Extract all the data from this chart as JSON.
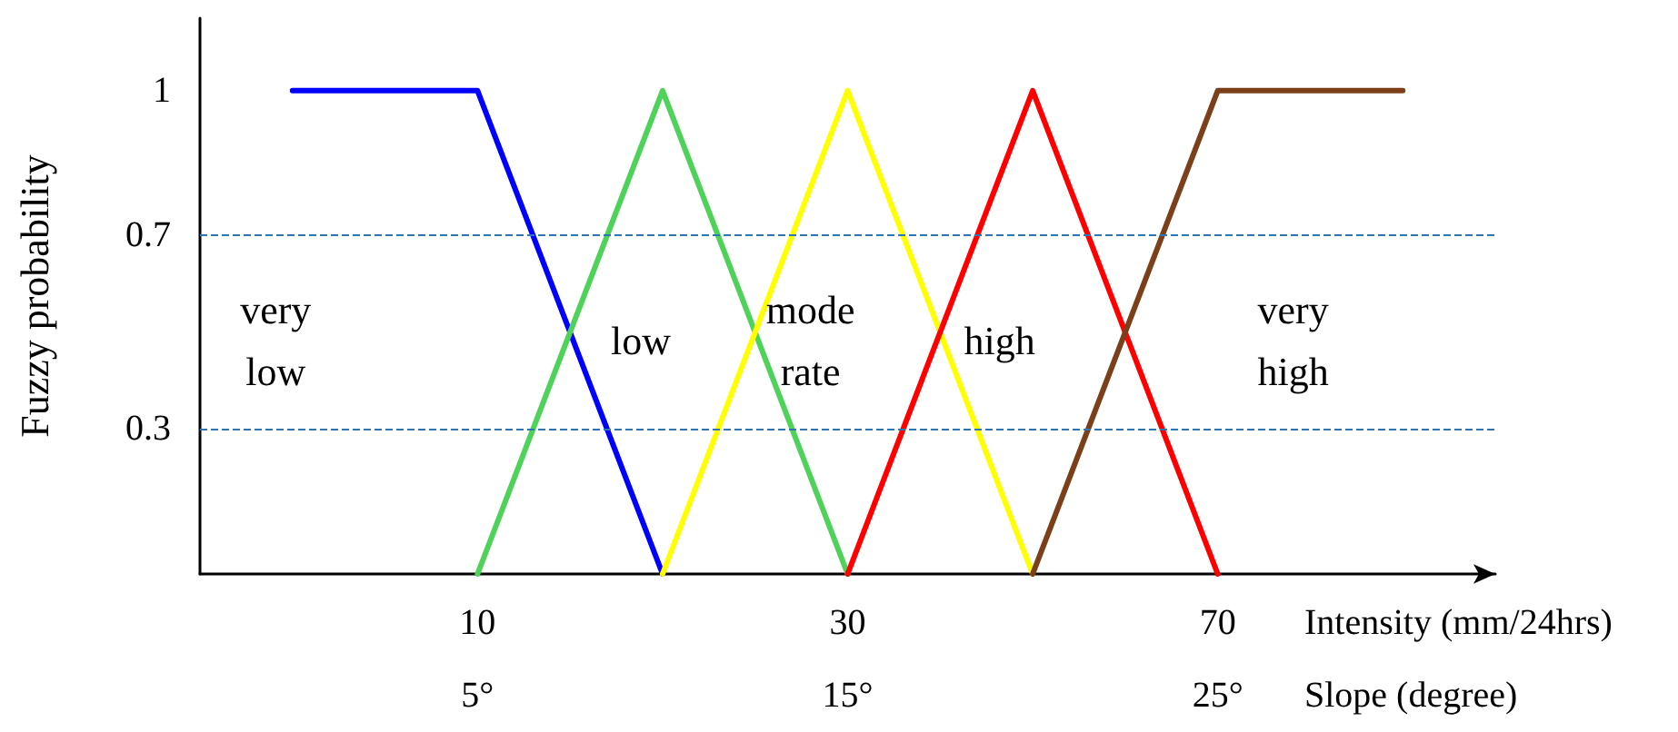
{
  "chart_data": {
    "type": "line",
    "ylabel": "Fuzzy probability",
    "xlabel": "Intensity (mm/24hrs)",
    "x2label": "Slope (degree)",
    "categories": [
      null,
      "10",
      null,
      "30",
      null,
      "70",
      null
    ],
    "x2lim": [
      -2.5,
      32.5
    ],
    "x2ticks": [
      {
        "value": 5,
        "label": "5°"
      },
      {
        "value": 15,
        "label": "15°"
      },
      {
        "value": 25,
        "label": "25°"
      }
    ],
    "ylim": [
      0,
      1.15
    ],
    "yticks": [
      0.3,
      0.7,
      1
    ],
    "series": [
      {
        "color": "#0000ff",
        "values": [
          1,
          1,
          0,
          null,
          null,
          null,
          null
        ]
      },
      {
        "color": "#4fd25a",
        "values": [
          null,
          0,
          1,
          0,
          null,
          null,
          null
        ]
      },
      {
        "color": "#ffff00",
        "values": [
          null,
          null,
          0,
          1,
          0,
          null,
          null
        ]
      },
      {
        "color": "#ff0000",
        "values": [
          null,
          null,
          null,
          0,
          1,
          0,
          null
        ]
      },
      {
        "color": "#7b3f1a",
        "values": [
          null,
          null,
          null,
          null,
          0,
          1,
          1
        ]
      }
    ],
    "annotations": [
      "very\nlow",
      "low",
      "mode\nrate",
      "high",
      "very\nhigh"
    ],
    "ref_lines": [
      {
        "axis": "y",
        "value": 0.7,
        "color": "#2e75b6",
        "line_style": "dashed"
      },
      {
        "axis": "y",
        "value": 0.3,
        "color": "#2e75b6",
        "line_style": "dashed"
      }
    ],
    "grid": false,
    "marker": "none",
    "line_style": "solid"
  }
}
